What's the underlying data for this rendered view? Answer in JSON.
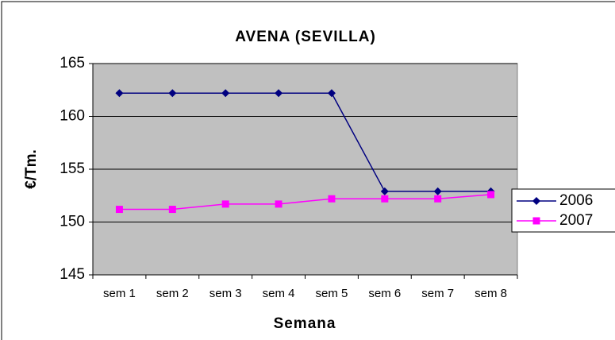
{
  "chart_data": {
    "type": "line",
    "title": "AVENA (SEVILLA)",
    "x_label": "Semana",
    "y_label": "€/Tm.",
    "categories": [
      "sem 1",
      "sem 2",
      "sem 3",
      "sem 4",
      "sem 5",
      "sem 6",
      "sem 7",
      "sem 8"
    ],
    "series": [
      {
        "name": "2006",
        "color": "#000080",
        "marker": "diamond",
        "values": [
          162.2,
          162.2,
          162.2,
          162.2,
          162.2,
          152.9,
          152.9,
          152.9
        ]
      },
      {
        "name": "2007",
        "color": "#ff00ff",
        "marker": "square",
        "values": [
          151.2,
          151.2,
          151.7,
          151.7,
          152.2,
          152.2,
          152.2,
          152.6
        ]
      }
    ],
    "ylim": [
      145,
      165
    ],
    "yticks": [
      145,
      150,
      155,
      160,
      165
    ],
    "grid": true,
    "legend": "right"
  }
}
